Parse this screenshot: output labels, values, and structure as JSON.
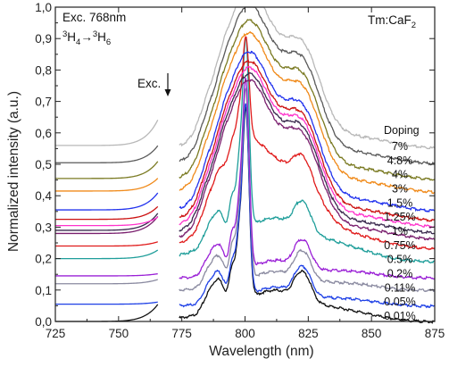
{
  "chart_data": {
    "type": "line",
    "title": "",
    "xlabel": "Wavelength (nm)",
    "ylabel": "Normalized intensity (a.u.)",
    "xlim": [
      725,
      875
    ],
    "ylim": [
      0.0,
      1.0
    ],
    "xticks": [
      "725",
      "750",
      "775",
      "800",
      "825",
      "850",
      "875"
    ],
    "yticks": [
      "0,0",
      "0,1",
      "0,2",
      "0,3",
      "0,4",
      "0,5",
      "0,6",
      "0,7",
      "0,8",
      "0,9",
      "1,0"
    ],
    "excitation_gap_nm": [
      766,
      774
    ],
    "annotations": {
      "excitation": {
        "base": "Exc. 768nm"
      },
      "transition": {
        "a_sup": "3",
        "a_base": "H",
        "a_sub": "4",
        "arrow": "→",
        "b_sup": "3",
        "b_base": "H",
        "b_sub": "6"
      },
      "material": {
        "base": "Tm:CaF",
        "sub": "2"
      },
      "exc_marker": "Exc.",
      "legend_title": "Doping"
    },
    "series": [
      {
        "name": "0.01%",
        "color": "#111111",
        "offset": 0.0,
        "shape": "sharp",
        "gen_x": 0.04,
        "gen_x2": 0.05,
        "lead": 0.0
      },
      {
        "name": "0.05%",
        "color": "#1e40e6",
        "offset": 0.05,
        "shape": "sharp",
        "gen_x": 0.005,
        "gen_x2": 0.01,
        "lead": 0.005
      },
      {
        "name": "0.11%",
        "color": "#8a8aa0",
        "offset": 0.1,
        "shape": "sharp",
        "gen_x": 0.01,
        "gen_x2": 0.01,
        "lead": 0.02
      },
      {
        "name": "0.2%",
        "color": "#9a20d6",
        "offset": 0.14,
        "shape": "sharp",
        "gen_x": 0.005,
        "gen_x2": 0.005,
        "lead": 0.005
      },
      {
        "name": "0.5%",
        "color": "#1f9e9a",
        "offset": 0.19,
        "shape": "sharp",
        "gen_x": 0.02,
        "gen_x2": 0.09,
        "lead": 0.01
      },
      {
        "name": "0.75%",
        "color": "#e01b1b",
        "offset": 0.23,
        "shape": "mixed",
        "gen_x": 0.01,
        "gen_x2": 0.1,
        "lead": 0.01
      },
      {
        "name": "1%",
        "color": "#7a1f6e",
        "offset": 0.26,
        "shape": "broad",
        "gen_x": 0.04,
        "gen_x2": 0.12,
        "lead": 0.02
      },
      {
        "name": "1.25%",
        "color": "#3a2a4e",
        "offset": 0.28,
        "shape": "broad",
        "gen_x": 0.04,
        "gen_x2": 0.1,
        "lead": 0.01
      },
      {
        "name": "1.5%",
        "color": "#ff33cc",
        "offset": 0.3,
        "shape": "broad",
        "gen_x": 0.02,
        "gen_x2": 0.05,
        "lead": 0.005
      },
      {
        "name": "3%",
        "color": "#cc1111",
        "offset": 0.32,
        "shape": "broad",
        "gen_x": 0.03,
        "gen_x2": 0.06,
        "lead": 0.005
      },
      {
        "name": "4%",
        "color": "#2233ee",
        "offset": 0.35,
        "shape": "broad",
        "gen_x": 0.04,
        "gen_x2": 0.1,
        "lead": 0.005
      },
      {
        "name": "4.8%",
        "color": "#f08a1a",
        "offset": 0.41,
        "shape": "broad",
        "gen_x": 0.03,
        "gen_x2": 0.07,
        "lead": 0.005
      },
      {
        "name": "7%",
        "color": "#7a7a22",
        "offset": 0.45,
        "shape": "broad",
        "gen_x": 0.04,
        "gen_x2": 0.08,
        "lead": 0.005
      },
      {
        "name": "",
        "color": "#5a5a5a",
        "offset": 0.5,
        "shape": "broad",
        "gen_x": 0.04,
        "gen_x2": 0.08,
        "lead": 0.005
      },
      {
        "name": "",
        "color": "#b8b8b8",
        "offset": 0.55,
        "shape": "broad",
        "gen_x": 0.06,
        "gen_x2": 0.1,
        "lead": 0.01
      }
    ]
  }
}
